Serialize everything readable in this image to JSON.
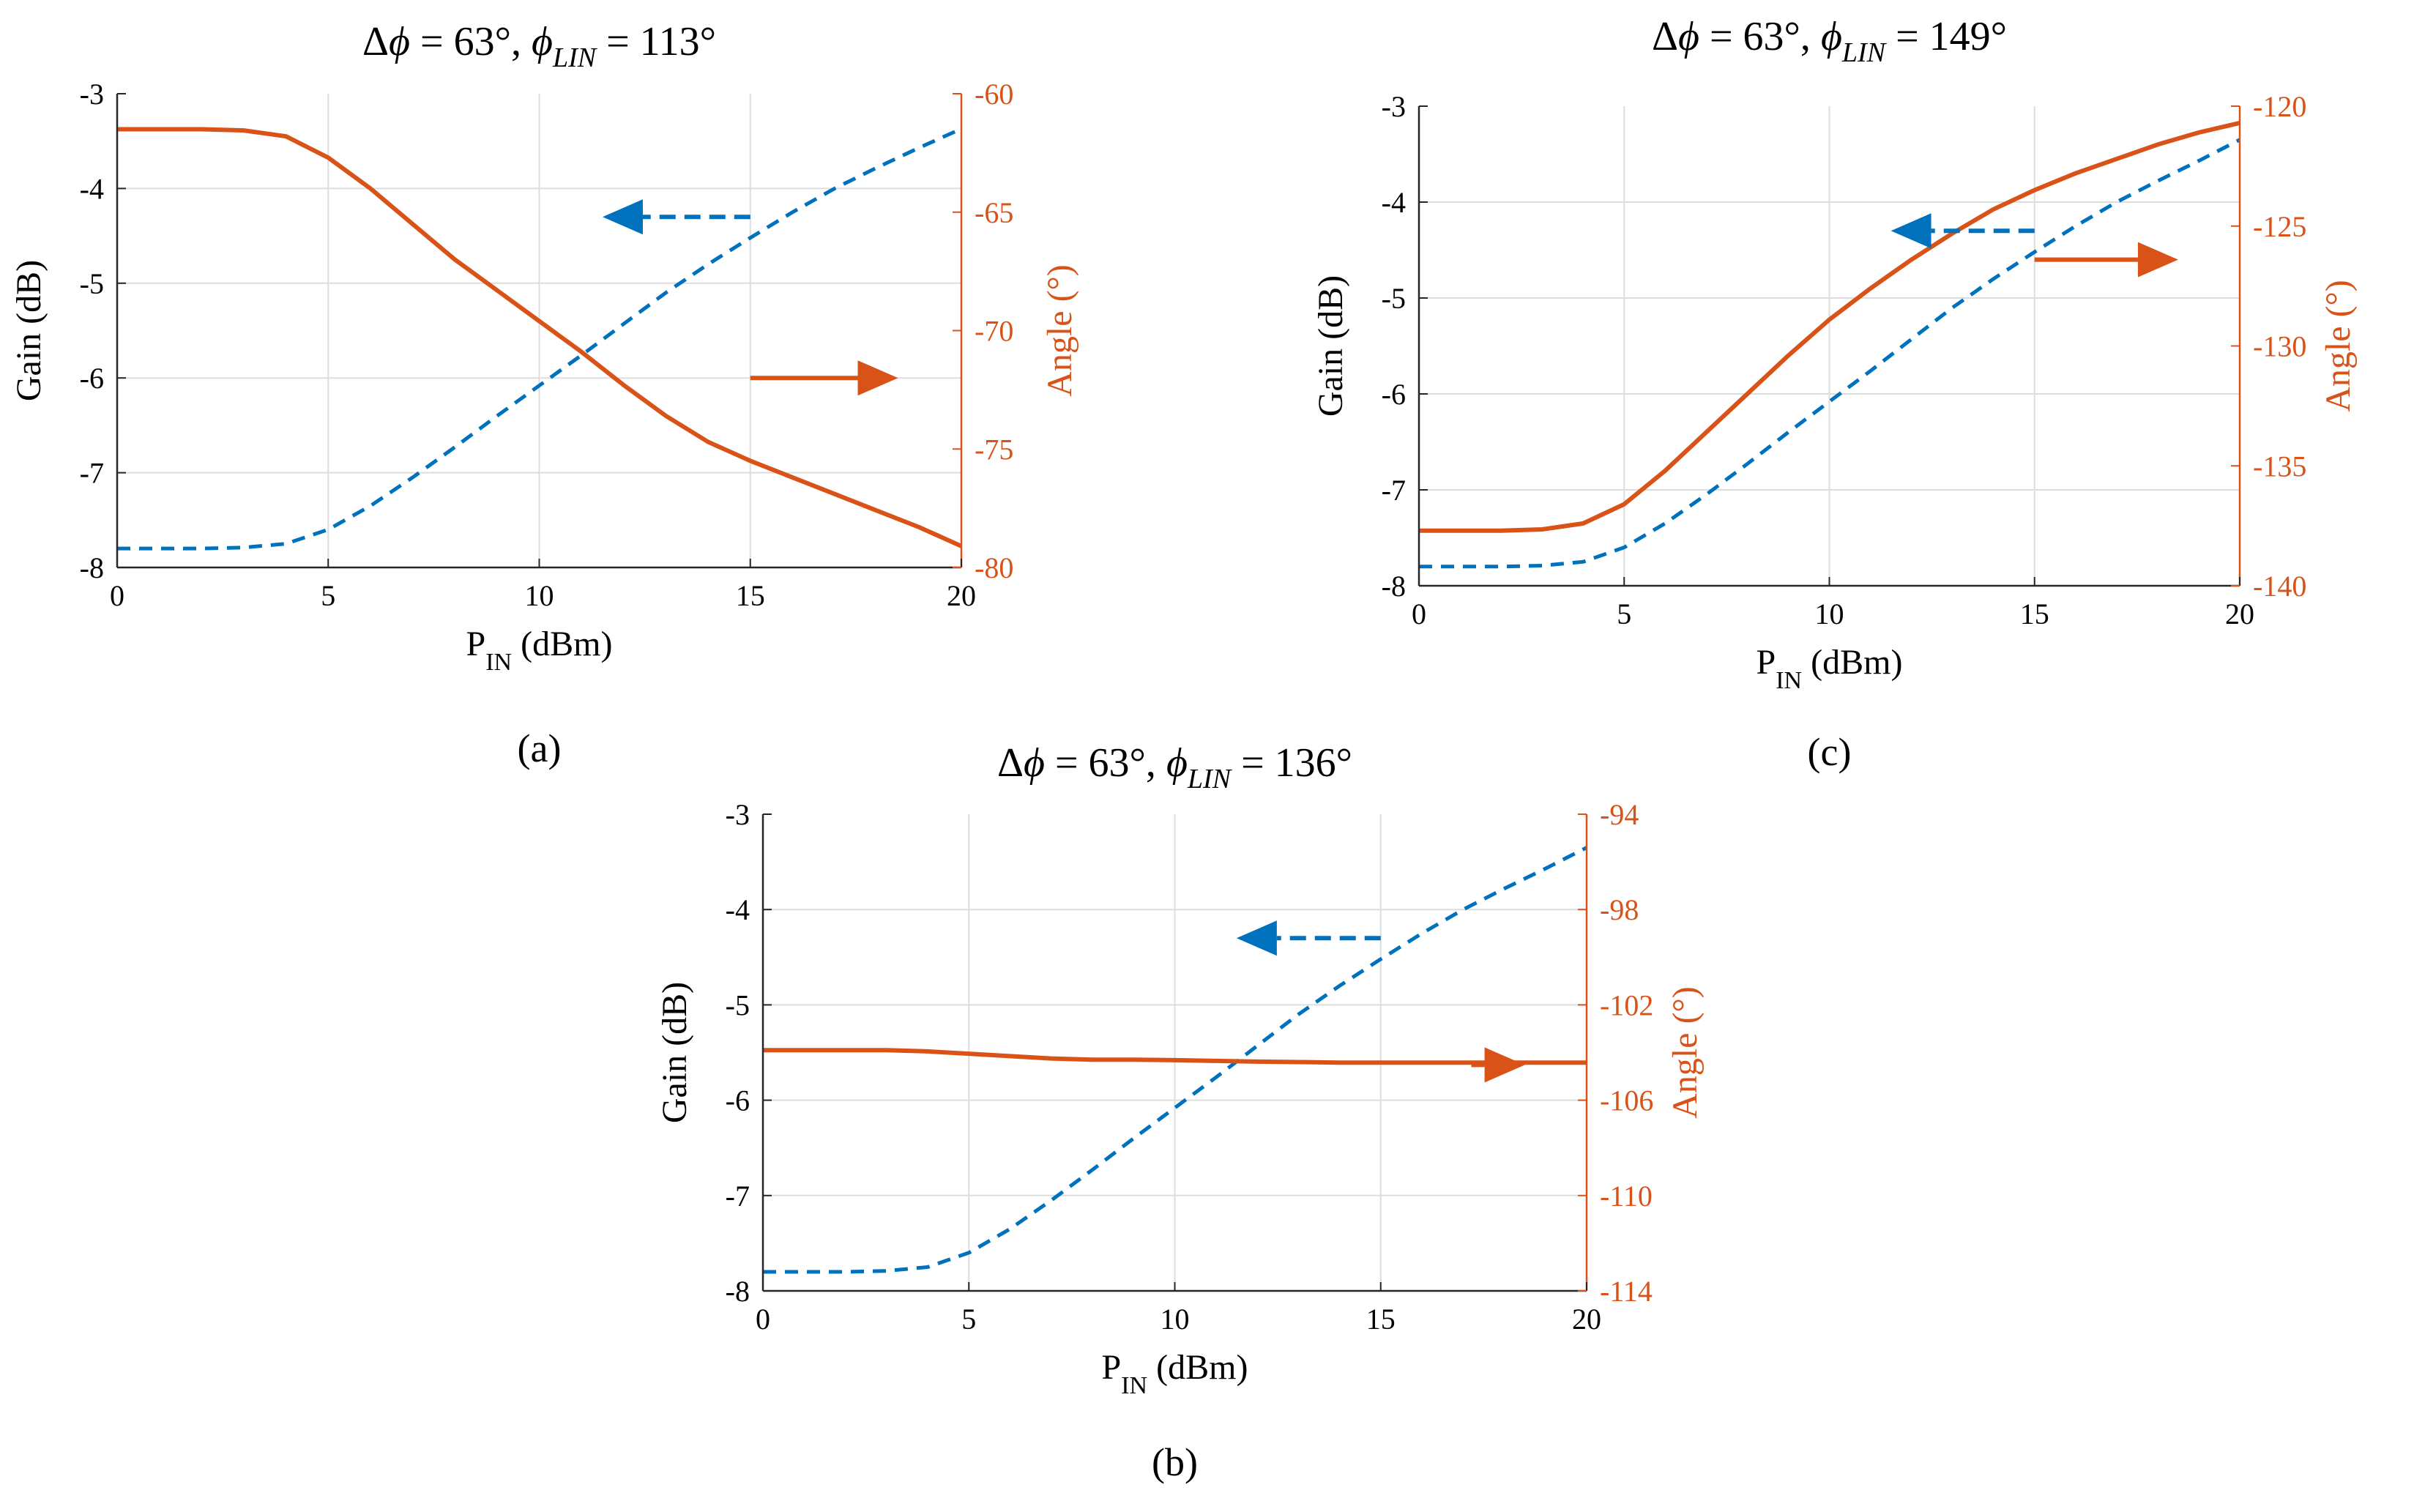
{
  "colors": {
    "gain": "#0072BD",
    "angle": "#D95319",
    "grid": "#dddddd",
    "axis": "#262626"
  },
  "chart_data": [
    {
      "id": "a",
      "type": "line",
      "panel_label": "(a)",
      "title": {
        "pre": "Δ",
        "phi": "ϕ",
        "mid": " = 63°, ",
        "phi2": "ϕ",
        "sub": "LIN",
        "post": " = 113°"
      },
      "xlabel": {
        "main": "P",
        "sub": "IN",
        "unit": " (dBm)"
      },
      "ylabel_left": "Gain (dB)",
      "ylabel_right": "Angle (°)",
      "xlim": [
        0,
        20
      ],
      "xticks": [
        0,
        5,
        10,
        15,
        20
      ],
      "ylim_left": [
        -8,
        -3
      ],
      "yticks_left": [
        -8,
        -7,
        -6,
        -5,
        -4,
        -3
      ],
      "ylim_right": [
        -80,
        -60
      ],
      "yticks_right": [
        -80,
        -75,
        -70,
        -65,
        -60
      ],
      "x": [
        0,
        1,
        2,
        3,
        4,
        5,
        6,
        7,
        8,
        9,
        10,
        11,
        12,
        13,
        14,
        15,
        16,
        17,
        18,
        19,
        20
      ],
      "series": [
        {
          "name": "Gain",
          "axis": "left",
          "style": "dashed",
          "values": [
            -7.8,
            -7.8,
            -7.8,
            -7.79,
            -7.75,
            -7.6,
            -7.35,
            -7.05,
            -6.73,
            -6.4,
            -6.08,
            -5.76,
            -5.43,
            -5.1,
            -4.8,
            -4.52,
            -4.25,
            -4.0,
            -3.78,
            -3.57,
            -3.37
          ]
        },
        {
          "name": "Angle",
          "axis": "right",
          "style": "solid",
          "values": [
            -61.5,
            -61.5,
            -61.5,
            -61.55,
            -61.8,
            -62.7,
            -64.0,
            -65.5,
            -67.0,
            -68.3,
            -69.6,
            -70.9,
            -72.3,
            -73.6,
            -74.7,
            -75.5,
            -76.2,
            -76.9,
            -77.6,
            -78.3,
            -79.1
          ]
        }
      ],
      "arrows": [
        {
          "axis": "left",
          "dir": "left",
          "x_from": 15,
          "x_to": 11.5,
          "y": -4.3
        },
        {
          "axis": "left",
          "dir": "right",
          "x_from": 15,
          "x_to": 18.5,
          "y": -6.0
        }
      ]
    },
    {
      "id": "c",
      "type": "line",
      "panel_label": "(c)",
      "title": {
        "pre": "Δ",
        "phi": "ϕ",
        "mid": " = 63°, ",
        "phi2": "ϕ",
        "sub": "LIN",
        "post": " = 149°"
      },
      "xlabel": {
        "main": "P",
        "sub": "IN",
        "unit": " (dBm)"
      },
      "ylabel_left": "Gain (dB)",
      "ylabel_right": "Angle (°)",
      "xlim": [
        0,
        20
      ],
      "xticks": [
        0,
        5,
        10,
        15,
        20
      ],
      "ylim_left": [
        -8,
        -3
      ],
      "yticks_left": [
        -8,
        -7,
        -6,
        -5,
        -4,
        -3
      ],
      "ylim_right": [
        -140,
        -120
      ],
      "yticks_right": [
        -140,
        -135,
        -130,
        -125,
        -120
      ],
      "x": [
        0,
        1,
        2,
        3,
        4,
        5,
        6,
        7,
        8,
        9,
        10,
        11,
        12,
        13,
        14,
        15,
        16,
        17,
        18,
        19,
        20
      ],
      "series": [
        {
          "name": "Gain",
          "axis": "left",
          "style": "dashed",
          "values": [
            -7.8,
            -7.8,
            -7.8,
            -7.79,
            -7.75,
            -7.6,
            -7.35,
            -7.05,
            -6.73,
            -6.4,
            -6.08,
            -5.76,
            -5.43,
            -5.1,
            -4.8,
            -4.52,
            -4.25,
            -4.0,
            -3.78,
            -3.57,
            -3.35
          ]
        },
        {
          "name": "Angle",
          "axis": "right",
          "style": "solid",
          "values": [
            -137.7,
            -137.7,
            -137.7,
            -137.65,
            -137.4,
            -136.6,
            -135.2,
            -133.6,
            -132.0,
            -130.4,
            -128.9,
            -127.6,
            -126.4,
            -125.3,
            -124.3,
            -123.5,
            -122.8,
            -122.2,
            -121.6,
            -121.1,
            -120.7
          ]
        }
      ],
      "arrows": [
        {
          "axis": "left",
          "dir": "left",
          "x_from": 15,
          "x_to": 11.5,
          "y": -4.3
        },
        {
          "axis": "left",
          "dir": "right",
          "x_from": 15,
          "x_to": 18.5,
          "y": -4.6
        }
      ]
    },
    {
      "id": "b",
      "type": "line",
      "panel_label": "(b)",
      "title": {
        "pre": "Δ",
        "phi": "ϕ",
        "mid": " = 63°, ",
        "phi2": "ϕ",
        "sub": "LIN",
        "post": " = 136°"
      },
      "xlabel": {
        "main": "P",
        "sub": "IN",
        "unit": " (dBm)"
      },
      "ylabel_left": "Gain (dB)",
      "ylabel_right": "Angle (°)",
      "xlim": [
        0,
        20
      ],
      "xticks": [
        0,
        5,
        10,
        15,
        20
      ],
      "ylim_left": [
        -8,
        -3
      ],
      "yticks_left": [
        -8,
        -7,
        -6,
        -5,
        -4,
        -3
      ],
      "ylim_right": [
        -114,
        -94
      ],
      "yticks_right": [
        -114,
        -110,
        -106,
        -102,
        -98,
        -94
      ],
      "x": [
        0,
        1,
        2,
        3,
        4,
        5,
        6,
        7,
        8,
        9,
        10,
        11,
        12,
        13,
        14,
        15,
        16,
        17,
        18,
        19,
        20
      ],
      "series": [
        {
          "name": "Gain",
          "axis": "left",
          "style": "dashed",
          "values": [
            -7.8,
            -7.8,
            -7.8,
            -7.79,
            -7.75,
            -7.6,
            -7.35,
            -7.05,
            -6.73,
            -6.4,
            -6.08,
            -5.76,
            -5.43,
            -5.1,
            -4.8,
            -4.52,
            -4.25,
            -4.0,
            -3.78,
            -3.57,
            -3.35
          ]
        },
        {
          "name": "Angle",
          "axis": "right",
          "style": "solid",
          "values": [
            -103.9,
            -103.9,
            -103.9,
            -103.9,
            -103.95,
            -104.05,
            -104.15,
            -104.25,
            -104.3,
            -104.3,
            -104.32,
            -104.35,
            -104.38,
            -104.4,
            -104.42,
            -104.42,
            -104.42,
            -104.42,
            -104.42,
            -104.42,
            -104.42
          ]
        }
      ],
      "arrows": [
        {
          "axis": "left",
          "dir": "left",
          "x_from": 15,
          "x_to": 11.5,
          "y": -4.3
        },
        {
          "axis": "left",
          "dir": "right",
          "x_from": 17.2,
          "x_to": 18.5,
          "y": -5.63
        }
      ]
    }
  ]
}
